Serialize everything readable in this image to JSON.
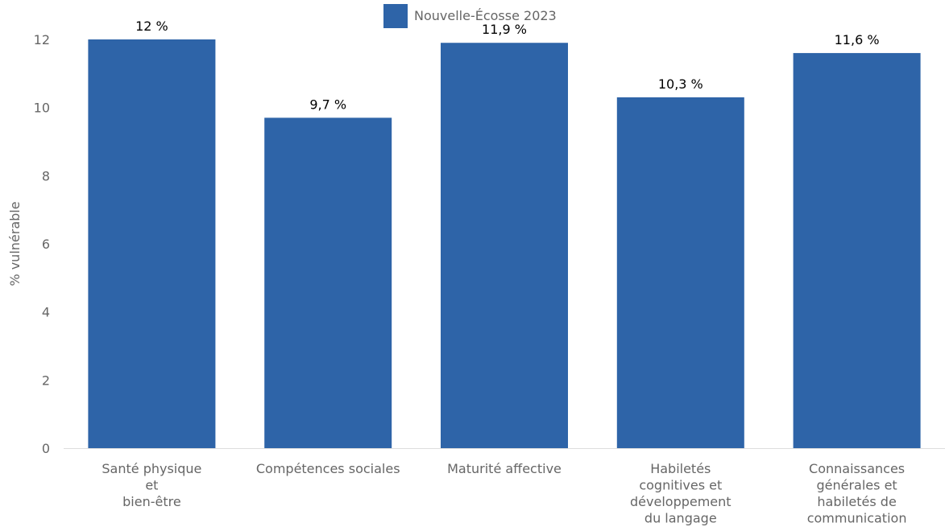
{
  "chart_data": {
    "type": "bar",
    "categories": [
      [
        "Santé physique",
        "et",
        "bien-être"
      ],
      [
        "Compétences sociales"
      ],
      [
        "Maturité affective"
      ],
      [
        "Habiletés",
        "cognitives et",
        "développement",
        "du langage"
      ],
      [
        "Connaissances",
        "générales et",
        "habiletés de",
        "communication"
      ]
    ],
    "series": [
      {
        "name": "Nouvelle-Écosse 2023",
        "values": [
          12,
          9.7,
          11.9,
          10.3,
          11.6
        ],
        "color": "#2e64a8"
      }
    ],
    "data_labels": [
      "12 %",
      "9,7 %",
      "11,9 %",
      "10,3 %",
      "11,6 %"
    ],
    "ylabel": "% vulnérable",
    "xlabel": "",
    "ylim": [
      0,
      12
    ],
    "yticks": [
      0,
      2,
      4,
      6,
      8,
      10,
      12
    ],
    "legend_position": "top-center",
    "grid": false
  }
}
